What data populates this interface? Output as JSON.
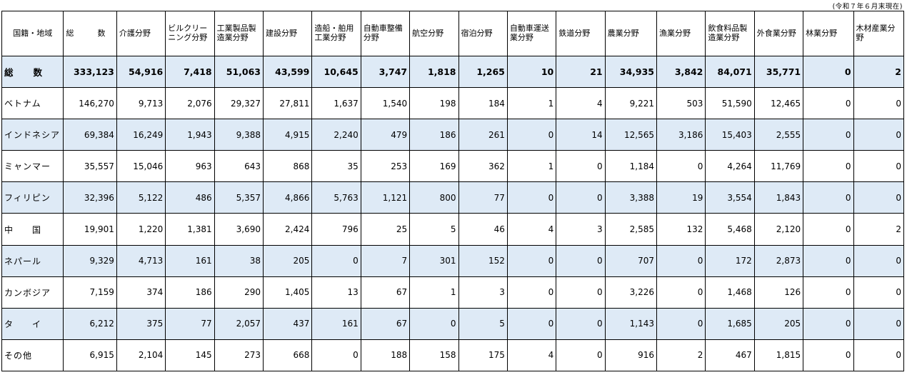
{
  "note": "(令和７年６月末現在)",
  "columns": [
    "国籍・地域",
    "総　　　数",
    "介護分野",
    "ビルクリーニング分野",
    "工業製品製造業分野",
    "建設分野",
    "造船・舶用工業分野",
    "自動車整備分野",
    "航空分野",
    "宿泊分野",
    "自動車運送業分野",
    "鉄道分野",
    "農業分野",
    "漁業分野",
    "飲食料品製造業分野",
    "外食業分野",
    "林業分野",
    "木材産業分野"
  ],
  "rows": [
    {
      "label": "総　　数",
      "values": [
        "333,123",
        "54,916",
        "7,418",
        "51,063",
        "43,599",
        "10,645",
        "3,747",
        "1,818",
        "1,265",
        "10",
        "21",
        "34,935",
        "3,842",
        "84,071",
        "35,771",
        "0",
        "2"
      ]
    },
    {
      "label": "ベトナム",
      "values": [
        "146,270",
        "9,713",
        "2,076",
        "29,327",
        "27,811",
        "1,637",
        "1,540",
        "198",
        "184",
        "1",
        "4",
        "9,221",
        "503",
        "51,590",
        "12,465",
        "0",
        "0"
      ]
    },
    {
      "label": "インドネシア",
      "values": [
        "69,384",
        "16,249",
        "1,943",
        "9,388",
        "4,915",
        "2,240",
        "479",
        "186",
        "261",
        "0",
        "14",
        "12,565",
        "3,186",
        "15,403",
        "2,555",
        "0",
        "0"
      ]
    },
    {
      "label": "ミャンマー",
      "values": [
        "35,557",
        "15,046",
        "963",
        "643",
        "868",
        "35",
        "253",
        "169",
        "362",
        "1",
        "0",
        "1,184",
        "0",
        "4,264",
        "11,769",
        "0",
        "0"
      ]
    },
    {
      "label": "フィリピン",
      "values": [
        "32,396",
        "5,122",
        "486",
        "5,357",
        "4,866",
        "5,763",
        "1,121",
        "800",
        "77",
        "0",
        "0",
        "3,388",
        "19",
        "3,554",
        "1,843",
        "0",
        "0"
      ]
    },
    {
      "label": "中　　国",
      "values": [
        "19,901",
        "1,220",
        "1,381",
        "3,690",
        "2,424",
        "796",
        "25",
        "5",
        "46",
        "4",
        "3",
        "2,585",
        "132",
        "5,468",
        "2,120",
        "0",
        "2"
      ]
    },
    {
      "label": "ネパール",
      "values": [
        "9,329",
        "4,713",
        "161",
        "38",
        "205",
        "0",
        "7",
        "301",
        "152",
        "0",
        "0",
        "707",
        "0",
        "172",
        "2,873",
        "0",
        "0"
      ]
    },
    {
      "label": "カンボジア",
      "values": [
        "7,159",
        "374",
        "186",
        "290",
        "1,405",
        "13",
        "67",
        "1",
        "3",
        "0",
        "0",
        "3,226",
        "0",
        "1,468",
        "126",
        "0",
        "0"
      ]
    },
    {
      "label": "タ　　イ",
      "values": [
        "6,212",
        "375",
        "77",
        "2,057",
        "437",
        "161",
        "67",
        "0",
        "5",
        "0",
        "0",
        "1,143",
        "0",
        "1,685",
        "205",
        "0",
        "0"
      ]
    },
    {
      "label": "その他",
      "values": [
        "6,915",
        "2,104",
        "145",
        "273",
        "668",
        "0",
        "188",
        "158",
        "175",
        "4",
        "0",
        "916",
        "2",
        "467",
        "1,815",
        "0",
        "0"
      ]
    }
  ]
}
